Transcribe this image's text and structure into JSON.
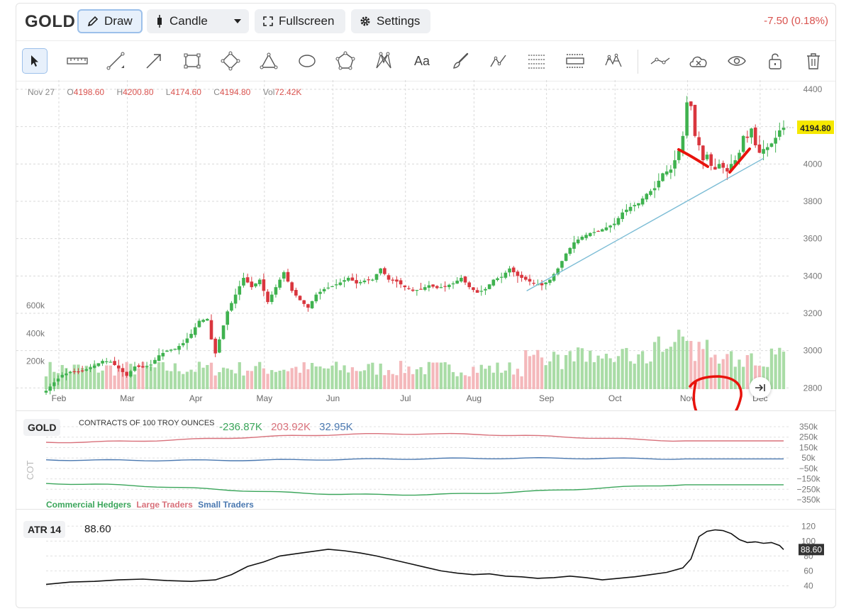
{
  "header": {
    "symbol": "GOLD",
    "draw_label": "Draw",
    "candle_label": "Candle",
    "fullscreen_label": "Fullscreen",
    "settings_label": "Settings",
    "change": "-7.50 (0.18%)"
  },
  "toolbar": {
    "tools": [
      "pointer-icon",
      "ruler-icon",
      "line-icon",
      "arrow-icon",
      "rectangle-icon",
      "rotated-rectangle-icon",
      "triangle-icon",
      "ellipse-icon",
      "polygon-icon",
      "pitchfork-icon",
      "text-icon",
      "brush-icon",
      "path-icon",
      "fibonacci-icon",
      "range-icon",
      "elliott-icon",
      "remove-selected-icon",
      "hide-drawings-icon",
      "visibility-icon",
      "lock-icon",
      "delete-icon"
    ],
    "text_tool_label": "Aa"
  },
  "ohlc": {
    "date": "Nov 27",
    "o_label": "O",
    "o": "4198.60",
    "h_label": "H",
    "h": "4200.80",
    "l_label": "L",
    "l": "4174.60",
    "c_label": "C",
    "c": "4194.80",
    "vol_label": "Vol",
    "vol": "72.42K"
  },
  "cot": {
    "label": "GOLD",
    "description": "CONTRACTS OF 100 TROY OUNCES",
    "values": [
      "-236.87K",
      "203.92K",
      "32.95K"
    ],
    "side_label": "COT",
    "legend": [
      "Commercial Hedgers",
      "Large Traders",
      "Small Traders"
    ]
  },
  "atr": {
    "label": "ATR 14",
    "value": "88.60"
  },
  "colors": {
    "up": "#3fb24f",
    "down": "#d9363e",
    "vol_up": "#a9dca6",
    "vol_down": "#f4b8bb",
    "trendline": "#7bbcd5",
    "annotation": "#e8130c",
    "price_badge": "#f5e800",
    "commercial": "#3aa55a",
    "large": "#d8707a",
    "small": "#4a78b0"
  },
  "chart_data": [
    {
      "type": "candlestick",
      "title": "GOLD",
      "x": [
        "Feb",
        "Mar",
        "Apr",
        "May",
        "Jun",
        "Jul",
        "Aug",
        "Sep",
        "Oct",
        "Nov",
        "Dec"
      ],
      "y_ticks": [
        2800,
        3000,
        3200,
        3400,
        3600,
        3800,
        4000,
        4200,
        4400
      ],
      "ylim": [
        2710,
        4400
      ],
      "last_price": 4194.8,
      "close_path": [
        [
          0,
          2785
        ],
        [
          2,
          2830
        ],
        [
          4,
          2870
        ],
        [
          6,
          2885
        ],
        [
          9,
          2890
        ],
        [
          12,
          2920
        ],
        [
          14,
          2945
        ],
        [
          16,
          2940
        ],
        [
          18,
          2905
        ],
        [
          20,
          2865
        ],
        [
          22,
          2915
        ],
        [
          24,
          2910
        ],
        [
          26,
          2925
        ],
        [
          28,
          2975
        ],
        [
          30,
          3000
        ],
        [
          32,
          3010
        ],
        [
          34,
          3040
        ],
        [
          36,
          3090
        ],
        [
          38,
          3160
        ],
        [
          40,
          3170
        ],
        [
          41,
          3060
        ],
        [
          42,
          2985
        ],
        [
          43,
          3060
        ],
        [
          45,
          3210
        ],
        [
          47,
          3300
        ],
        [
          49,
          3390
        ],
        [
          51,
          3340
        ],
        [
          53,
          3380
        ],
        [
          55,
          3260
        ],
        [
          57,
          3340
        ],
        [
          59,
          3420
        ],
        [
          61,
          3320
        ],
        [
          63,
          3270
        ],
        [
          65,
          3230
        ],
        [
          67,
          3300
        ],
        [
          69,
          3330
        ],
        [
          71,
          3345
        ],
        [
          73,
          3365
        ],
        [
          75,
          3390
        ],
        [
          77,
          3360
        ],
        [
          79,
          3375
        ],
        [
          81,
          3380
        ],
        [
          83,
          3440
        ],
        [
          85,
          3380
        ],
        [
          87,
          3370
        ],
        [
          89,
          3340
        ],
        [
          91,
          3320
        ],
        [
          93,
          3330
        ],
        [
          95,
          3350
        ],
        [
          97,
          3335
        ],
        [
          99,
          3345
        ],
        [
          101,
          3360
        ],
        [
          103,
          3390
        ],
        [
          105,
          3340
        ],
        [
          107,
          3310
        ],
        [
          109,
          3330
        ],
        [
          111,
          3380
        ],
        [
          113,
          3395
        ],
        [
          115,
          3440
        ],
        [
          117,
          3400
        ],
        [
          119,
          3380
        ],
        [
          121,
          3360
        ],
        [
          123,
          3350
        ],
        [
          125,
          3380
        ],
        [
          127,
          3440
        ],
        [
          129,
          3520
        ],
        [
          131,
          3580
        ],
        [
          133,
          3610
        ],
        [
          135,
          3630
        ],
        [
          137,
          3640
        ],
        [
          139,
          3660
        ],
        [
          141,
          3680
        ],
        [
          143,
          3740
        ],
        [
          145,
          3770
        ],
        [
          147,
          3790
        ],
        [
          149,
          3840
        ],
        [
          151,
          3870
        ],
        [
          153,
          3950
        ],
        [
          155,
          3970
        ],
        [
          157,
          4070
        ],
        [
          158,
          4150
        ],
        [
          159,
          4330
        ],
        [
          160,
          4310
        ],
        [
          161,
          4150
        ],
        [
          162,
          4100
        ],
        [
          163,
          4020
        ],
        [
          164,
          4050
        ],
        [
          165,
          3990
        ],
        [
          166,
          3970
        ],
        [
          167,
          4000
        ],
        [
          168,
          3980
        ],
        [
          169,
          3960
        ],
        [
          170,
          4000
        ],
        [
          171,
          4020
        ],
        [
          172,
          4060
        ],
        [
          173,
          4150
        ],
        [
          174,
          4140
        ],
        [
          175,
          4190
        ],
        [
          176,
          4100
        ],
        [
          177,
          4060
        ],
        [
          178,
          4080
        ],
        [
          179,
          4090
        ],
        [
          180,
          4110
        ],
        [
          181,
          4140
        ],
        [
          182,
          4180
        ],
        [
          183,
          4194.8
        ]
      ],
      "volume_axis": [
        "200k",
        "400k",
        "600k"
      ],
      "trendline": [
        [
          3320,
          "Aug"
        ],
        [
          4030,
          "Nov"
        ]
      ]
    },
    {
      "type": "line",
      "title": "COT",
      "series": [
        {
          "name": "Commercial Hedgers",
          "end_value": -236870
        },
        {
          "name": "Large Traders",
          "end_value": 203920
        },
        {
          "name": "Small Traders",
          "end_value": 32950
        }
      ],
      "y_ticks": [
        "350k",
        "250k",
        "150k",
        "50k",
        "−50k",
        "−150k",
        "−250k",
        "−350k"
      ]
    },
    {
      "type": "line",
      "title": "ATR 14",
      "series": [
        {
          "name": "ATR 14",
          "last": 88.6
        }
      ],
      "y_ticks": [
        40,
        60,
        80,
        100,
        120
      ],
      "ylim": [
        30,
        125
      ],
      "path": [
        [
          0,
          42
        ],
        [
          6,
          45
        ],
        [
          12,
          46
        ],
        [
          18,
          48
        ],
        [
          24,
          49
        ],
        [
          30,
          47
        ],
        [
          36,
          46
        ],
        [
          42,
          48
        ],
        [
          46,
          55
        ],
        [
          50,
          66
        ],
        [
          54,
          72
        ],
        [
          58,
          80
        ],
        [
          62,
          83
        ],
        [
          66,
          86
        ],
        [
          70,
          89
        ],
        [
          74,
          87
        ],
        [
          78,
          84
        ],
        [
          82,
          80
        ],
        [
          86,
          75
        ],
        [
          90,
          70
        ],
        [
          94,
          65
        ],
        [
          98,
          60
        ],
        [
          102,
          57
        ],
        [
          106,
          55
        ],
        [
          110,
          56
        ],
        [
          114,
          53
        ],
        [
          118,
          52
        ],
        [
          122,
          50
        ],
        [
          126,
          51
        ],
        [
          130,
          53
        ],
        [
          134,
          51
        ],
        [
          138,
          48
        ],
        [
          142,
          50
        ],
        [
          146,
          52
        ],
        [
          150,
          55
        ],
        [
          154,
          58
        ],
        [
          158,
          64
        ],
        [
          160,
          76
        ],
        [
          162,
          106
        ],
        [
          164,
          113
        ],
        [
          166,
          115
        ],
        [
          168,
          114
        ],
        [
          170,
          110
        ],
        [
          172,
          102
        ],
        [
          174,
          98
        ],
        [
          176,
          99
        ],
        [
          178,
          97
        ],
        [
          180,
          98
        ],
        [
          182,
          94
        ],
        [
          183,
          88.6
        ]
      ]
    }
  ]
}
